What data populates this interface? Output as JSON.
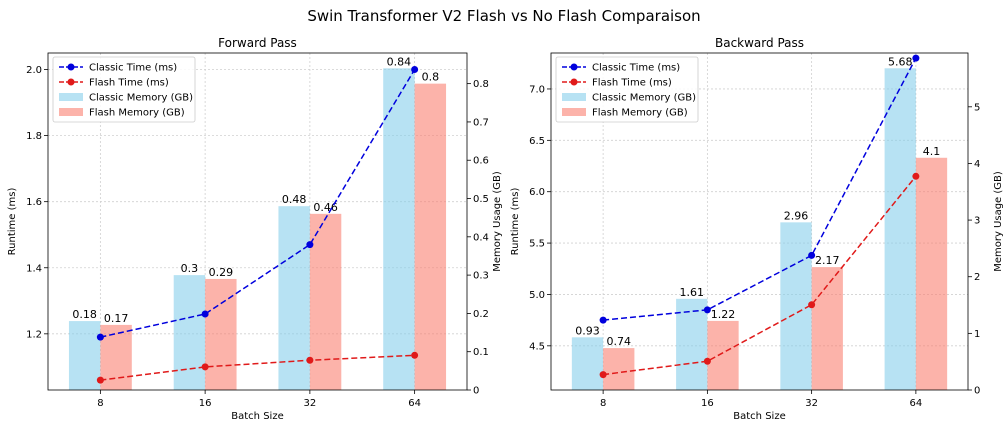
{
  "suptitle": "Swin Transformer V2 Flash vs No Flash Comparaison",
  "colors": {
    "classic_time": "#0000dd",
    "flash_time": "#e01a1a",
    "classic_memory": "#87ceeb",
    "flash_memory": "#fa8072",
    "grid": "#d0d0d0"
  },
  "chart_data": [
    {
      "type": "bar+line",
      "title": "Forward Pass",
      "xlabel": "Batch Size",
      "ylabel": "Runtime (ms)",
      "y2label": "Memory Usage (GB)",
      "categories": [
        "8",
        "16",
        "32",
        "64"
      ],
      "ylim": [
        1.03,
        2.05
      ],
      "yticks": [
        1.2,
        1.4,
        1.6,
        1.8,
        2.0
      ],
      "y2lim": [
        0,
        0.88
      ],
      "y2ticks": [
        0,
        0.1,
        0.2,
        0.3,
        0.4,
        0.5,
        0.6,
        0.7,
        0.8
      ],
      "grid": true,
      "legend_position": "upper-left",
      "time_series": [
        {
          "name": "Classic Time (ms)",
          "values": [
            1.19,
            1.26,
            1.47,
            2.0
          ]
        },
        {
          "name": "Flash Time (ms)",
          "values": [
            1.06,
            1.1,
            1.12,
            1.135
          ]
        }
      ],
      "memory_series": [
        {
          "name": "Classic Memory (GB)",
          "values": [
            0.18,
            0.3,
            0.48,
            0.84
          ],
          "labels": [
            "0.18",
            "0.3",
            "0.48",
            "0.84"
          ]
        },
        {
          "name": "Flash Memory (GB)",
          "values": [
            0.17,
            0.29,
            0.46,
            0.8
          ],
          "labels": [
            "0.17",
            "0.29",
            "0.46",
            "0.8"
          ]
        }
      ]
    },
    {
      "type": "bar+line",
      "title": "Backward Pass",
      "xlabel": "Batch Size",
      "ylabel": "Runtime (ms)",
      "y2label": "Memory Usage (GB)",
      "categories": [
        "8",
        "16",
        "32",
        "64"
      ],
      "ylim": [
        4.07,
        7.35
      ],
      "yticks": [
        4.5,
        5.0,
        5.5,
        6.0,
        6.5,
        7.0
      ],
      "y2lim": [
        0,
        5.95
      ],
      "y2ticks": [
        0,
        1,
        2,
        3,
        4,
        5
      ],
      "grid": true,
      "legend_position": "upper-left",
      "time_series": [
        {
          "name": "Classic Time (ms)",
          "values": [
            4.75,
            4.85,
            5.38,
            7.3
          ]
        },
        {
          "name": "Flash Time (ms)",
          "values": [
            4.22,
            4.35,
            4.9,
            6.15
          ]
        }
      ],
      "memory_series": [
        {
          "name": "Classic Memory (GB)",
          "values": [
            0.93,
            1.61,
            2.96,
            5.68
          ],
          "labels": [
            "0.93",
            "1.61",
            "2.96",
            "5.68"
          ]
        },
        {
          "name": "Flash Memory (GB)",
          "values": [
            0.74,
            1.22,
            2.17,
            4.1
          ],
          "labels": [
            "0.74",
            "1.22",
            "2.17",
            "4.1"
          ]
        }
      ]
    }
  ]
}
